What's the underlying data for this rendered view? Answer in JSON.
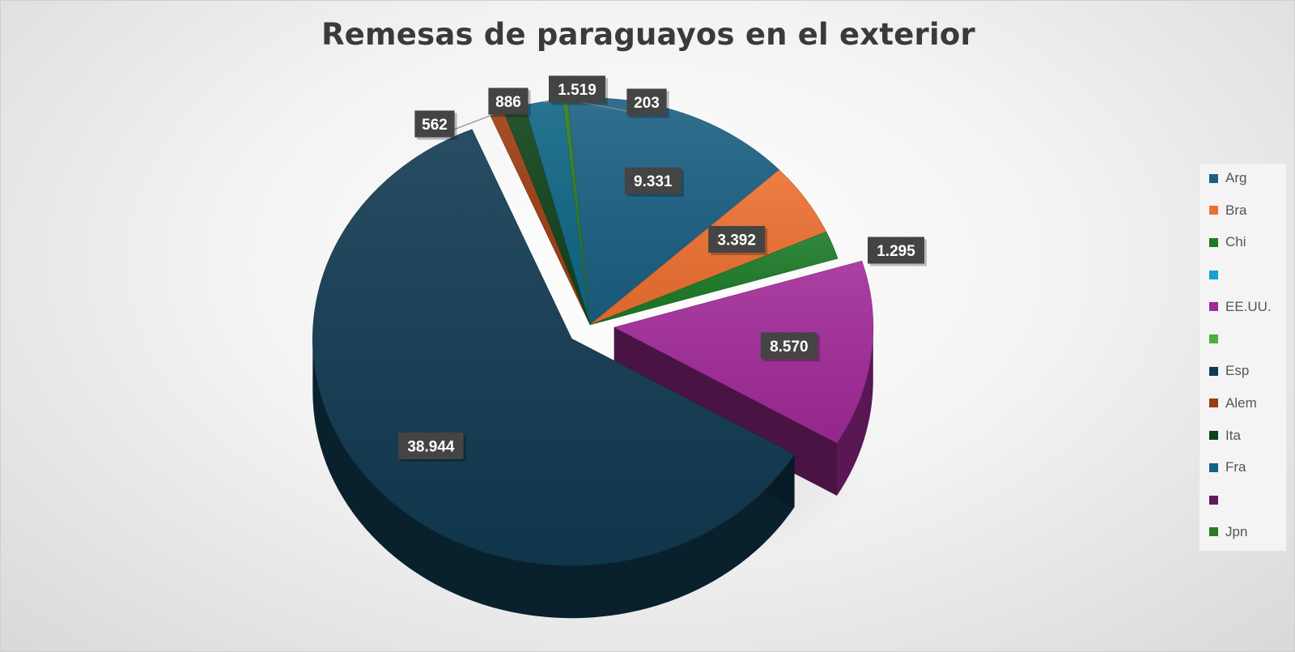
{
  "chart_data": {
    "type": "pie",
    "title": "Remesas de paraguayos en el exterior",
    "legend_position": "right",
    "slices": [
      {
        "name": "Arg",
        "value": 9331,
        "label": "9.331",
        "color": "#1a5f82",
        "exploded": false
      },
      {
        "name": "Bra",
        "value": 3392,
        "label": "3.392",
        "color": "#ed7030",
        "exploded": false
      },
      {
        "name": "Chi",
        "value": 1295,
        "label": "1.295",
        "color": "#1b7a26",
        "exploded": false
      },
      {
        "name": "",
        "value": 0,
        "label": "",
        "color": "#1a9ed8",
        "exploded": false
      },
      {
        "name": "EE.UU.",
        "value": 8570,
        "label": "8.570",
        "color": "#a22a98",
        "exploded": true
      },
      {
        "name": "",
        "value": 0,
        "label": "",
        "color": "#4cae3c",
        "exploded": false
      },
      {
        "name": "Esp",
        "value": 38944,
        "label": "38.944",
        "color": "#113a52",
        "exploded": true
      },
      {
        "name": "Alem",
        "value": 562,
        "label": "562",
        "color": "#9c3c10",
        "exploded": false
      },
      {
        "name": "Ita",
        "value": 886,
        "label": "886",
        "color": "#0e4219",
        "exploded": false
      },
      {
        "name": "Fra",
        "value": 1519,
        "label": "1.519",
        "color": "#0e6586",
        "exploded": false
      },
      {
        "name": "",
        "value": 0,
        "label": "",
        "color": "#611a58",
        "exploded": false
      },
      {
        "name": "Jpn",
        "value": 203,
        "label": "203",
        "color": "#2c7b24",
        "exploded": false
      }
    ]
  }
}
